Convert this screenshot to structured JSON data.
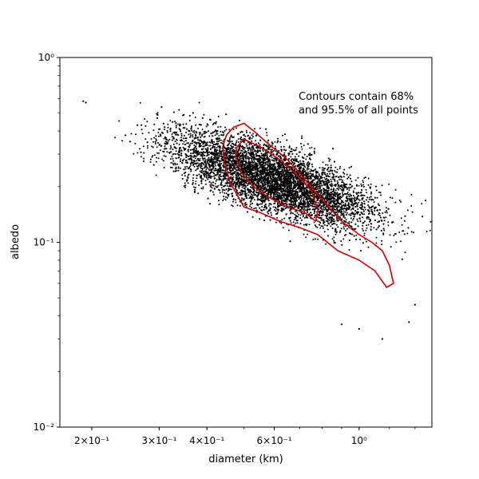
{
  "chart_data": {
    "type": "scatter",
    "title": "",
    "xlabel": "diameter (km)",
    "ylabel": "albedo",
    "x_scale": "log",
    "y_scale": "log",
    "xlim": [
      0.165,
      1.55
    ],
    "ylim": [
      0.01,
      1.0
    ],
    "grid": false,
    "x_ticks": [
      {
        "value": 0.2,
        "label": "2×10⁻¹"
      },
      {
        "value": 0.3,
        "label": "3×10⁻¹"
      },
      {
        "value": 0.4,
        "label": "4×10⁻¹"
      },
      {
        "value": 0.6,
        "label": "6×10⁻¹"
      },
      {
        "value": 1.0,
        "label": "10⁰"
      }
    ],
    "y_ticks": [
      {
        "value": 0.01,
        "label": "10⁻²"
      },
      {
        "value": 0.1,
        "label": "10⁻¹"
      },
      {
        "value": 1.0,
        "label": "10⁰"
      }
    ],
    "annotation": [
      "Contours contain 68%",
      "and 95.5% of all points"
    ],
    "point_color": "#000000",
    "contour_color": "#d00000",
    "cloud_model": {
      "point_count": 7000,
      "log10_diameter_center": -0.22,
      "log10_albedo_center": -0.66,
      "slope": -0.9,
      "spread_along": 0.17,
      "spread_across": 0.07
    },
    "outliers": [
      {
        "x": 0.19,
        "y": 0.58
      },
      {
        "x": 0.193,
        "y": 0.57
      },
      {
        "x": 0.31,
        "y": 0.42
      },
      {
        "x": 0.36,
        "y": 0.4
      },
      {
        "x": 0.39,
        "y": 0.47
      },
      {
        "x": 0.9,
        "y": 0.036
      },
      {
        "x": 1.0,
        "y": 0.034
      },
      {
        "x": 1.15,
        "y": 0.03
      },
      {
        "x": 1.4,
        "y": 0.046
      },
      {
        "x": 1.35,
        "y": 0.037
      }
    ],
    "contour_95": {
      "label": "95.5%",
      "x": [
        0.5,
        0.47,
        0.45,
        0.44,
        0.445,
        0.46,
        0.5,
        0.55,
        0.62,
        0.7,
        0.78,
        0.88,
        1.0,
        1.1,
        1.18,
        1.23,
        1.2,
        1.15,
        1.08,
        1.0,
        0.9,
        0.8,
        0.72,
        0.65,
        0.58,
        0.53,
        0.5
      ],
      "y": [
        0.44,
        0.42,
        0.38,
        0.33,
        0.27,
        0.21,
        0.155,
        0.145,
        0.13,
        0.12,
        0.11,
        0.09,
        0.08,
        0.07,
        0.057,
        0.06,
        0.075,
        0.09,
        0.1,
        0.11,
        0.13,
        0.17,
        0.22,
        0.28,
        0.34,
        0.4,
        0.44
      ]
    },
    "contour_68": {
      "label": "68%",
      "x": [
        0.5,
        0.48,
        0.475,
        0.49,
        0.53,
        0.58,
        0.65,
        0.72,
        0.77,
        0.78,
        0.75,
        0.69,
        0.62,
        0.55,
        0.5
      ],
      "y": [
        0.36,
        0.33,
        0.29,
        0.24,
        0.2,
        0.175,
        0.155,
        0.145,
        0.13,
        0.15,
        0.19,
        0.23,
        0.28,
        0.33,
        0.36
      ]
    }
  }
}
